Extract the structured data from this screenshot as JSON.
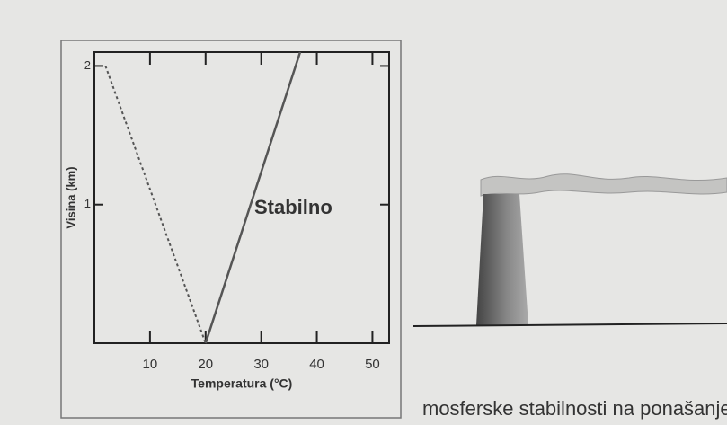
{
  "chart_data": {
    "type": "line",
    "x_label": "Temperatura (°C)",
    "y_label": "Visina (km)",
    "annotation": "Stabilno",
    "xlim": [
      0,
      53
    ],
    "ylim": [
      0,
      2.1
    ],
    "xticks": [
      10,
      20,
      30,
      40,
      50
    ],
    "yticks": [
      1,
      2
    ],
    "series": [
      {
        "color": "#555555",
        "style": "solid",
        "x": [
          20,
          37
        ],
        "values": [
          0,
          2.1
        ]
      },
      {
        "color": "#555555",
        "style": "dotted",
        "x": [
          2,
          20
        ],
        "values": [
          2,
          0
        ]
      }
    ]
  },
  "caption": "mosferske stabilnosti na ponašanje dima"
}
